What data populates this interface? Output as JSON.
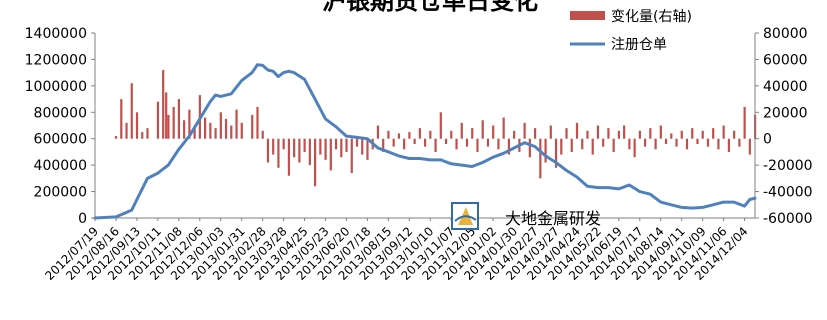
{
  "chart_data": {
    "type": "bar+line",
    "title": "沪银期货仓单日变化",
    "watermark": "大地金属研发",
    "x_start": "2012/07/19",
    "x_end": "2014/12/18",
    "x_tick_labels": [
      "2012/07/19",
      "2012/08/16",
      "2012/09/13",
      "2012/10/11",
      "2012/11/08",
      "2012/12/06",
      "2013/01/03",
      "2013/01/31",
      "2013/02/28",
      "2013/03/28",
      "2013/04/25",
      "2013/05/23",
      "2013/06/20",
      "2013/07/18",
      "2013/08/15",
      "2013/09/12",
      "2013/10/10",
      "2013/11/07",
      "2013/12/05",
      "2014/01/02",
      "2014/01/30",
      "2014/02/27",
      "2014/03/27",
      "2014/04/24",
      "2014/05/22",
      "2014/06/19",
      "2014/07/17",
      "2014/08/14",
      "2014/09/11",
      "2014/10/09",
      "2014/11/06",
      "2014/12/04"
    ],
    "y_left": {
      "min": 0,
      "max": 1400000,
      "ticks": [
        0,
        200000,
        400000,
        600000,
        800000,
        1000000,
        1200000,
        1400000
      ]
    },
    "y_right": {
      "min": -60000,
      "max": 80000,
      "ticks": [
        -60000,
        -40000,
        -20000,
        0,
        20000,
        40000,
        60000,
        80000
      ]
    },
    "legend": {
      "position": "top-right"
    },
    "series": [
      {
        "name": "变化量(右轴)",
        "type": "bar",
        "axis": "right",
        "color": "#C0504D",
        "points": [
          [
            "2012/08/16",
            2000
          ],
          [
            "2012/08/23",
            30000
          ],
          [
            "2012/08/30",
            12000
          ],
          [
            "2012/09/06",
            42000
          ],
          [
            "2012/09/13",
            20000
          ],
          [
            "2012/09/20",
            5000
          ],
          [
            "2012/09/27",
            8000
          ],
          [
            "2012/10/11",
            28000
          ],
          [
            "2012/10/18",
            52000
          ],
          [
            "2012/10/22",
            35000
          ],
          [
            "2012/10/25",
            18000
          ],
          [
            "2012/11/01",
            24000
          ],
          [
            "2012/11/08",
            30000
          ],
          [
            "2012/11/15",
            14000
          ],
          [
            "2012/11/22",
            22000
          ],
          [
            "2012/11/29",
            10000
          ],
          [
            "2012/12/06",
            33000
          ],
          [
            "2012/12/13",
            16000
          ],
          [
            "2012/12/20",
            12000
          ],
          [
            "2012/12/27",
            8000
          ],
          [
            "2013/01/03",
            20000
          ],
          [
            "2013/01/10",
            15000
          ],
          [
            "2013/01/17",
            10000
          ],
          [
            "2013/01/24",
            22000
          ],
          [
            "2013/01/31",
            12000
          ],
          [
            "2013/02/14",
            18000
          ],
          [
            "2013/02/21",
            24000
          ],
          [
            "2013/02/28",
            6000
          ],
          [
            "2013/03/07",
            -18000
          ],
          [
            "2013/03/14",
            -12000
          ],
          [
            "2013/03/21",
            -22000
          ],
          [
            "2013/03/28",
            -8000
          ],
          [
            "2013/04/04",
            -28000
          ],
          [
            "2013/04/11",
            -14000
          ],
          [
            "2013/04/18",
            -18000
          ],
          [
            "2013/04/25",
            -10000
          ],
          [
            "2013/05/02",
            -20000
          ],
          [
            "2013/05/09",
            -36000
          ],
          [
            "2013/05/16",
            -12000
          ],
          [
            "2013/05/23",
            -16000
          ],
          [
            "2013/05/30",
            -24000
          ],
          [
            "2013/06/06",
            -8000
          ],
          [
            "2013/06/13",
            -14000
          ],
          [
            "2013/06/20",
            -10000
          ],
          [
            "2013/06/27",
            -26000
          ],
          [
            "2013/07/04",
            -6000
          ],
          [
            "2013/07/11",
            -12000
          ],
          [
            "2013/07/18",
            -16000
          ],
          [
            "2013/07/25",
            -8000
          ],
          [
            "2013/08/01",
            10000
          ],
          [
            "2013/08/08",
            -10000
          ],
          [
            "2013/08/15",
            6000
          ],
          [
            "2013/08/22",
            -6000
          ],
          [
            "2013/08/29",
            4000
          ],
          [
            "2013/09/05",
            -8000
          ],
          [
            "2013/09/12",
            5000
          ],
          [
            "2013/09/19",
            -4000
          ],
          [
            "2013/09/26",
            8000
          ],
          [
            "2013/10/03",
            -6000
          ],
          [
            "2013/10/10",
            6000
          ],
          [
            "2013/10/17",
            -10000
          ],
          [
            "2013/10/24",
            20000
          ],
          [
            "2013/10/31",
            -4000
          ],
          [
            "2013/11/07",
            6000
          ],
          [
            "2013/11/14",
            -8000
          ],
          [
            "2013/11/21",
            12000
          ],
          [
            "2013/11/28",
            -6000
          ],
          [
            "2013/12/05",
            8000
          ],
          [
            "2013/12/12",
            -10000
          ],
          [
            "2013/12/19",
            14000
          ],
          [
            "2013/12/26",
            -6000
          ],
          [
            "2014/01/02",
            10000
          ],
          [
            "2014/01/09",
            -8000
          ],
          [
            "2014/01/16",
            16000
          ],
          [
            "2014/01/23",
            -12000
          ],
          [
            "2014/01/30",
            6000
          ],
          [
            "2014/02/06",
            -10000
          ],
          [
            "2014/02/13",
            12000
          ],
          [
            "2014/02/20",
            -14000
          ],
          [
            "2014/02/27",
            8000
          ],
          [
            "2014/03/06",
            -30000
          ],
          [
            "2014/03/13",
            -18000
          ],
          [
            "2014/03/20",
            10000
          ],
          [
            "2014/03/27",
            -22000
          ],
          [
            "2014/04/03",
            -12000
          ],
          [
            "2014/04/10",
            8000
          ],
          [
            "2014/04/17",
            -10000
          ],
          [
            "2014/04/24",
            12000
          ],
          [
            "2014/05/01",
            -8000
          ],
          [
            "2014/05/08",
            6000
          ],
          [
            "2014/05/15",
            -12000
          ],
          [
            "2014/05/22",
            10000
          ],
          [
            "2014/05/29",
            -6000
          ],
          [
            "2014/06/05",
            8000
          ],
          [
            "2014/06/12",
            -10000
          ],
          [
            "2014/06/19",
            6000
          ],
          [
            "2014/06/26",
            10000
          ],
          [
            "2014/07/03",
            -8000
          ],
          [
            "2014/07/10",
            -14000
          ],
          [
            "2014/07/17",
            6000
          ],
          [
            "2014/07/24",
            -6000
          ],
          [
            "2014/07/31",
            8000
          ],
          [
            "2014/08/07",
            -8000
          ],
          [
            "2014/08/14",
            10000
          ],
          [
            "2014/08/21",
            -4000
          ],
          [
            "2014/08/28",
            4000
          ],
          [
            "2014/09/04",
            -6000
          ],
          [
            "2014/09/11",
            6000
          ],
          [
            "2014/09/18",
            -8000
          ],
          [
            "2014/09/25",
            8000
          ],
          [
            "2014/10/02",
            -4000
          ],
          [
            "2014/10/09",
            6000
          ],
          [
            "2014/10/16",
            -6000
          ],
          [
            "2014/10/23",
            8000
          ],
          [
            "2014/10/30",
            -8000
          ],
          [
            "2014/11/06",
            10000
          ],
          [
            "2014/11/13",
            -10000
          ],
          [
            "2014/11/20",
            6000
          ],
          [
            "2014/11/27",
            -6000
          ],
          [
            "2014/12/04",
            24000
          ],
          [
            "2014/12/11",
            -12000
          ],
          [
            "2014/12/18",
            18000
          ]
        ]
      },
      {
        "name": "注册仓单",
        "type": "line",
        "axis": "left",
        "color": "#4F81BD",
        "points": [
          [
            "2012/07/19",
            0
          ],
          [
            "2012/08/16",
            8000
          ],
          [
            "2012/09/06",
            60000
          ],
          [
            "2012/09/13",
            140000
          ],
          [
            "2012/09/27",
            300000
          ],
          [
            "2012/10/11",
            340000
          ],
          [
            "2012/10/25",
            400000
          ],
          [
            "2012/11/08",
            520000
          ],
          [
            "2012/11/22",
            620000
          ],
          [
            "2012/12/06",
            750000
          ],
          [
            "2012/12/20",
            880000
          ],
          [
            "2012/12/27",
            930000
          ],
          [
            "2013/01/03",
            920000
          ],
          [
            "2013/01/17",
            940000
          ],
          [
            "2013/01/31",
            1040000
          ],
          [
            "2013/02/14",
            1100000
          ],
          [
            "2013/02/21",
            1160000
          ],
          [
            "2013/02/28",
            1155000
          ],
          [
            "2013/03/07",
            1120000
          ],
          [
            "2013/03/14",
            1110000
          ],
          [
            "2013/03/21",
            1070000
          ],
          [
            "2013/03/28",
            1100000
          ],
          [
            "2013/04/04",
            1110000
          ],
          [
            "2013/04/11",
            1100000
          ],
          [
            "2013/04/25",
            1050000
          ],
          [
            "2013/05/09",
            900000
          ],
          [
            "2013/05/23",
            750000
          ],
          [
            "2013/06/06",
            690000
          ],
          [
            "2013/06/20",
            620000
          ],
          [
            "2013/07/04",
            610000
          ],
          [
            "2013/07/18",
            600000
          ],
          [
            "2013/08/01",
            530000
          ],
          [
            "2013/08/15",
            500000
          ],
          [
            "2013/08/29",
            470000
          ],
          [
            "2013/09/12",
            450000
          ],
          [
            "2013/09/26",
            450000
          ],
          [
            "2013/10/10",
            440000
          ],
          [
            "2013/10/24",
            440000
          ],
          [
            "2013/11/07",
            410000
          ],
          [
            "2013/11/21",
            400000
          ],
          [
            "2013/12/05",
            390000
          ],
          [
            "2013/12/19",
            420000
          ],
          [
            "2014/01/02",
            460000
          ],
          [
            "2014/01/16",
            490000
          ],
          [
            "2014/01/30",
            530000
          ],
          [
            "2014/02/13",
            570000
          ],
          [
            "2014/02/27",
            540000
          ],
          [
            "2014/03/13",
            470000
          ],
          [
            "2014/03/27",
            420000
          ],
          [
            "2014/04/10",
            360000
          ],
          [
            "2014/04/24",
            310000
          ],
          [
            "2014/05/08",
            240000
          ],
          [
            "2014/05/22",
            230000
          ],
          [
            "2014/06/05",
            230000
          ],
          [
            "2014/06/19",
            220000
          ],
          [
            "2014/07/03",
            250000
          ],
          [
            "2014/07/17",
            200000
          ],
          [
            "2014/07/31",
            180000
          ],
          [
            "2014/08/14",
            120000
          ],
          [
            "2014/08/28",
            100000
          ],
          [
            "2014/09/11",
            80000
          ],
          [
            "2014/09/25",
            75000
          ],
          [
            "2014/10/09",
            80000
          ],
          [
            "2014/10/23",
            100000
          ],
          [
            "2014/11/06",
            120000
          ],
          [
            "2014/11/20",
            120000
          ],
          [
            "2014/12/04",
            90000
          ],
          [
            "2014/12/11",
            140000
          ],
          [
            "2014/12/18",
            150000
          ]
        ]
      }
    ]
  }
}
